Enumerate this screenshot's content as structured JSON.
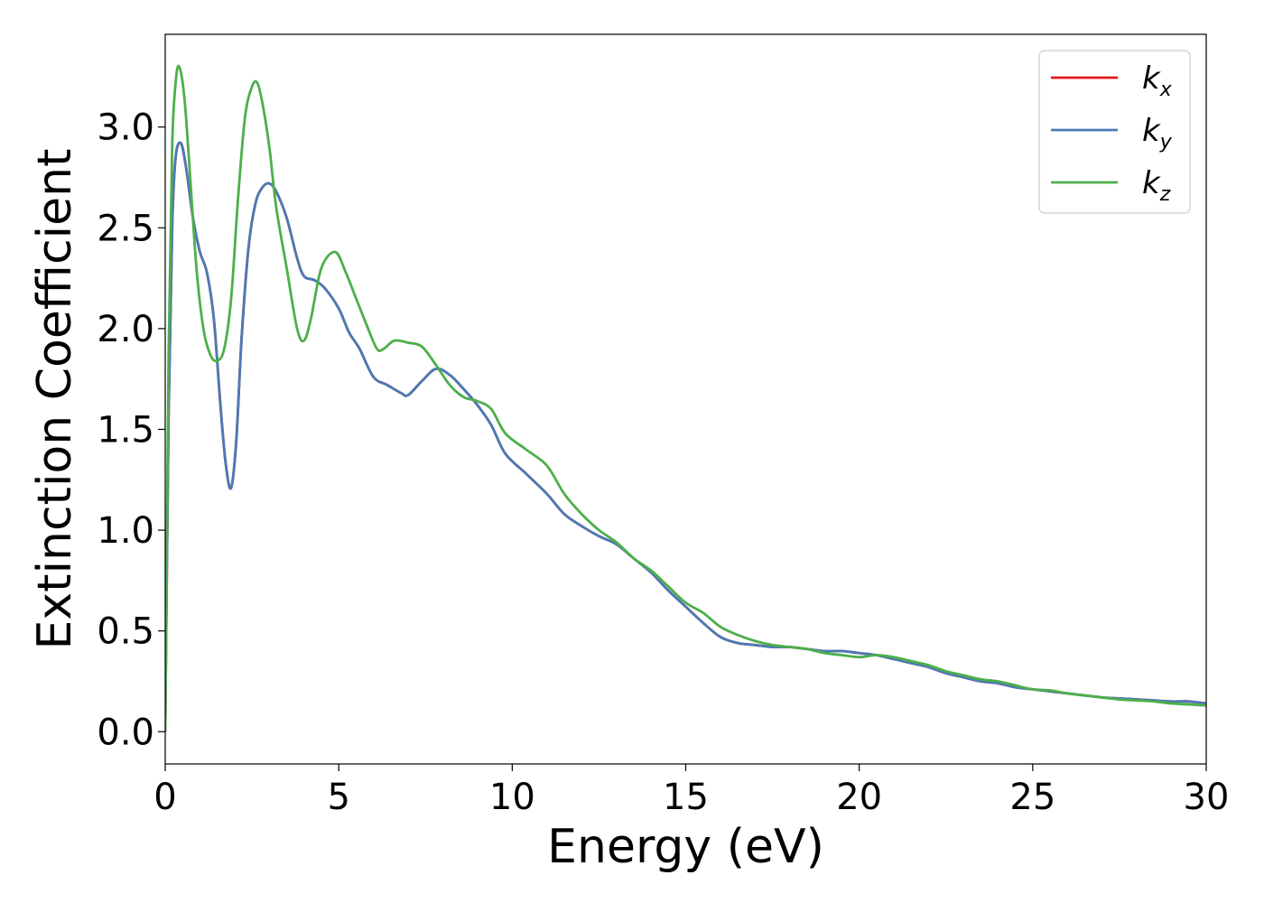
{
  "chart_data": {
    "type": "line",
    "title": "",
    "xlabel": "Energy (eV)",
    "ylabel": "Extinction Coefficient",
    "xlim": [
      0,
      30
    ],
    "ylim": [
      -0.16,
      3.46
    ],
    "xticks": [
      0,
      5,
      10,
      15,
      20,
      25,
      30
    ],
    "xtick_labels": [
      "0",
      "5",
      "10",
      "15",
      "20",
      "25",
      "30"
    ],
    "yticks": [
      0.0,
      0.5,
      1.0,
      1.5,
      2.0,
      2.5,
      3.0
    ],
    "ytick_labels": [
      "0.0",
      "0.5",
      "1.0",
      "1.5",
      "2.0",
      "2.5",
      "3.0"
    ],
    "grid": false,
    "legend_position": "top-right",
    "series": [
      {
        "name": "k_x",
        "legend_base": "k",
        "legend_sub": "x",
        "color": "#e41a1c",
        "x": [
          0,
          0.1,
          0.2,
          0.3,
          0.45,
          0.6,
          0.8,
          1.0,
          1.2,
          1.4,
          1.6,
          1.75,
          1.9,
          2.05,
          2.2,
          2.4,
          2.6,
          2.8,
          3.0,
          3.2,
          3.5,
          3.8,
          4.0,
          4.3,
          4.6,
          5.0,
          5.3,
          5.6,
          6.0,
          6.4,
          6.8,
          7.0,
          7.4,
          7.8,
          8.2,
          8.6,
          9.0,
          9.4,
          9.8,
          10.4,
          11.0,
          11.5,
          12.0,
          12.5,
          13.0,
          13.5,
          14.0,
          14.5,
          15.0,
          15.5,
          16.0,
          16.5,
          17.0,
          17.5,
          18.0,
          18.5,
          19.0,
          19.5,
          20.0,
          20.5,
          21.0,
          21.5,
          22.0,
          22.5,
          23.0,
          23.5,
          24.0,
          24.5,
          25.0,
          25.5,
          26.0,
          26.5,
          27.0,
          27.5,
          28.0,
          28.5,
          29.0,
          29.5,
          30.0
        ],
        "values": [
          0.0,
          1.6,
          2.5,
          2.85,
          2.92,
          2.8,
          2.55,
          2.38,
          2.28,
          2.05,
          1.6,
          1.32,
          1.21,
          1.45,
          1.95,
          2.4,
          2.62,
          2.7,
          2.72,
          2.68,
          2.55,
          2.35,
          2.26,
          2.24,
          2.2,
          2.1,
          1.98,
          1.9,
          1.76,
          1.72,
          1.68,
          1.67,
          1.74,
          1.8,
          1.77,
          1.7,
          1.62,
          1.52,
          1.38,
          1.28,
          1.18,
          1.08,
          1.02,
          0.97,
          0.93,
          0.86,
          0.79,
          0.7,
          0.62,
          0.54,
          0.47,
          0.44,
          0.43,
          0.42,
          0.42,
          0.41,
          0.4,
          0.4,
          0.39,
          0.38,
          0.36,
          0.34,
          0.32,
          0.29,
          0.27,
          0.25,
          0.24,
          0.22,
          0.21,
          0.2,
          0.19,
          0.18,
          0.17,
          0.165,
          0.16,
          0.155,
          0.15,
          0.15,
          0.14
        ]
      },
      {
        "name": "k_y",
        "legend_base": "k",
        "legend_sub": "y",
        "color": "#4a7ab5",
        "x": [
          0,
          0.1,
          0.2,
          0.3,
          0.45,
          0.6,
          0.8,
          1.0,
          1.2,
          1.4,
          1.6,
          1.75,
          1.9,
          2.05,
          2.2,
          2.4,
          2.6,
          2.8,
          3.0,
          3.2,
          3.5,
          3.8,
          4.0,
          4.3,
          4.6,
          5.0,
          5.3,
          5.6,
          6.0,
          6.4,
          6.8,
          7.0,
          7.4,
          7.8,
          8.2,
          8.6,
          9.0,
          9.4,
          9.8,
          10.4,
          11.0,
          11.5,
          12.0,
          12.5,
          13.0,
          13.5,
          14.0,
          14.5,
          15.0,
          15.5,
          16.0,
          16.5,
          17.0,
          17.5,
          18.0,
          18.5,
          19.0,
          19.5,
          20.0,
          20.5,
          21.0,
          21.5,
          22.0,
          22.5,
          23.0,
          23.5,
          24.0,
          24.5,
          25.0,
          25.5,
          26.0,
          26.5,
          27.0,
          27.5,
          28.0,
          28.5,
          29.0,
          29.5,
          30.0
        ],
        "values": [
          0.0,
          1.6,
          2.5,
          2.85,
          2.92,
          2.8,
          2.55,
          2.38,
          2.28,
          2.05,
          1.6,
          1.32,
          1.21,
          1.45,
          1.95,
          2.4,
          2.62,
          2.7,
          2.72,
          2.68,
          2.55,
          2.35,
          2.26,
          2.24,
          2.2,
          2.1,
          1.98,
          1.9,
          1.76,
          1.72,
          1.68,
          1.67,
          1.74,
          1.8,
          1.77,
          1.7,
          1.62,
          1.52,
          1.38,
          1.28,
          1.18,
          1.08,
          1.02,
          0.97,
          0.93,
          0.86,
          0.79,
          0.7,
          0.62,
          0.54,
          0.47,
          0.44,
          0.43,
          0.42,
          0.42,
          0.41,
          0.4,
          0.4,
          0.39,
          0.38,
          0.36,
          0.34,
          0.32,
          0.29,
          0.27,
          0.25,
          0.24,
          0.22,
          0.21,
          0.2,
          0.19,
          0.18,
          0.17,
          0.165,
          0.16,
          0.155,
          0.15,
          0.15,
          0.14
        ]
      },
      {
        "name": "k_z",
        "legend_base": "k",
        "legend_sub": "z",
        "color": "#4daf4a",
        "x": [
          0,
          0.1,
          0.2,
          0.3,
          0.4,
          0.55,
          0.7,
          0.9,
          1.1,
          1.3,
          1.5,
          1.7,
          1.9,
          2.1,
          2.3,
          2.5,
          2.65,
          2.8,
          3.0,
          3.2,
          3.5,
          3.8,
          4.0,
          4.2,
          4.5,
          4.9,
          5.2,
          5.5,
          5.8,
          6.1,
          6.3,
          6.6,
          7.0,
          7.4,
          7.8,
          8.2,
          8.6,
          9.0,
          9.4,
          9.8,
          10.4,
          11.0,
          11.5,
          12.0,
          12.5,
          13.0,
          13.5,
          14.0,
          14.5,
          15.0,
          15.5,
          16.0,
          16.5,
          17.0,
          17.5,
          18.0,
          18.5,
          19.0,
          19.5,
          20.0,
          20.5,
          21.0,
          21.5,
          22.0,
          22.5,
          23.0,
          23.5,
          24.0,
          24.5,
          25.0,
          25.5,
          26.0,
          26.5,
          27.0,
          27.5,
          28.0,
          28.5,
          29.0,
          29.5,
          30.0
        ],
        "values": [
          0.0,
          1.9,
          2.9,
          3.22,
          3.3,
          3.15,
          2.8,
          2.3,
          2.0,
          1.87,
          1.84,
          1.9,
          2.15,
          2.65,
          3.05,
          3.2,
          3.22,
          3.12,
          2.9,
          2.6,
          2.3,
          2.0,
          1.94,
          2.05,
          2.3,
          2.38,
          2.28,
          2.15,
          2.02,
          1.9,
          1.9,
          1.94,
          1.93,
          1.91,
          1.82,
          1.72,
          1.66,
          1.64,
          1.6,
          1.48,
          1.4,
          1.32,
          1.18,
          1.08,
          1.0,
          0.94,
          0.86,
          0.8,
          0.72,
          0.64,
          0.59,
          0.52,
          0.48,
          0.45,
          0.43,
          0.42,
          0.41,
          0.39,
          0.38,
          0.37,
          0.38,
          0.37,
          0.35,
          0.33,
          0.3,
          0.28,
          0.26,
          0.25,
          0.23,
          0.21,
          0.205,
          0.19,
          0.18,
          0.17,
          0.16,
          0.155,
          0.15,
          0.14,
          0.135,
          0.13
        ]
      }
    ]
  }
}
